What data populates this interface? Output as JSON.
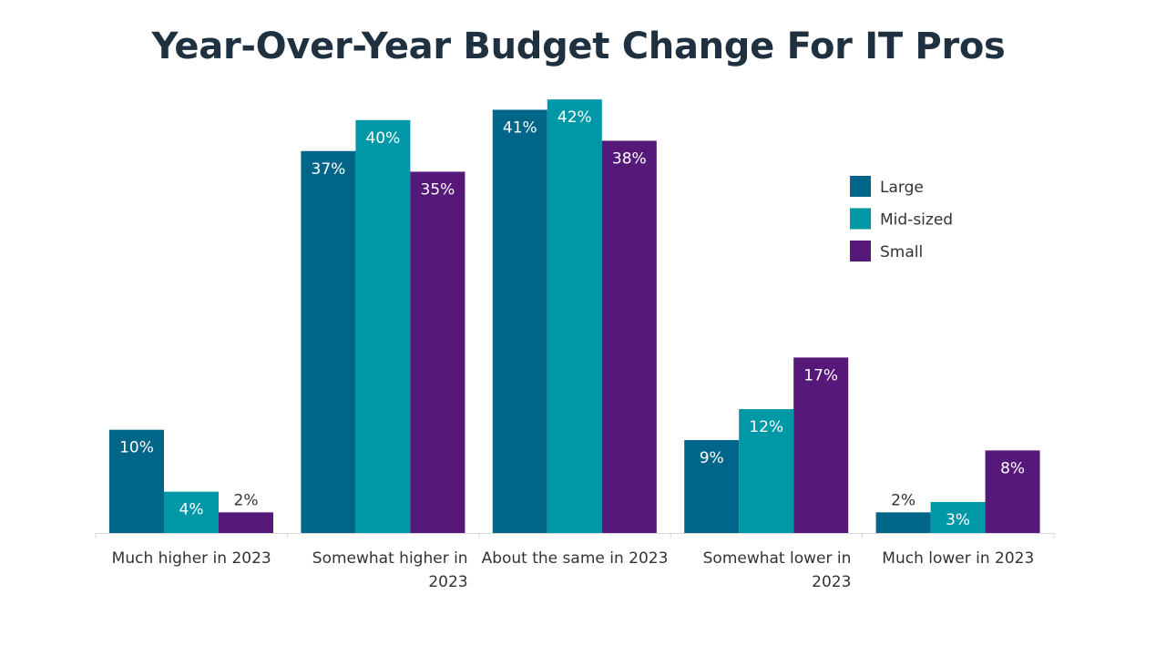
{
  "chart_data": {
    "type": "bar",
    "title": "Year-Over-Year Budget Change For IT Pros",
    "xlabel": "",
    "ylabel": "",
    "ylim": [
      0,
      44
    ],
    "grid": false,
    "legend_position": "top-right",
    "categories": [
      [
        "Much higher in 2023"
      ],
      [
        "Somewhat higher in",
        "2023"
      ],
      [
        "About the same in 2023"
      ],
      [
        "Somewhat lower in",
        "2023"
      ],
      [
        "Much lower in 2023"
      ]
    ],
    "series": [
      {
        "name": "Large",
        "color": "#006689",
        "values": [
          10,
          37,
          41,
          9,
          2
        ],
        "labels": [
          "10%",
          "37%",
          "41%",
          "9%",
          "2%"
        ]
      },
      {
        "name": "Mid-sized",
        "color": "#0097a7",
        "values": [
          4,
          40,
          42,
          12,
          3
        ],
        "labels": [
          "4%",
          "40%",
          "42%",
          "12%",
          "3%"
        ]
      },
      {
        "name": "Small",
        "color": "#56197a",
        "values": [
          2,
          35,
          38,
          17,
          8
        ],
        "labels": [
          "2%",
          "35%",
          "38%",
          "17%",
          "8%"
        ]
      }
    ]
  }
}
